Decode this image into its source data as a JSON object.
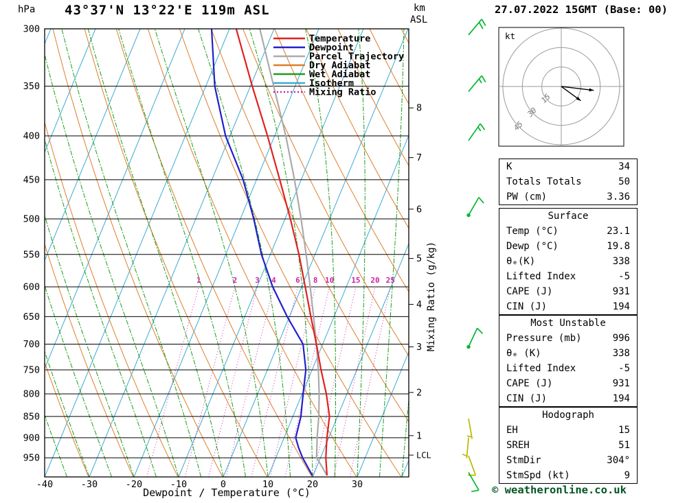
{
  "header": {
    "pressure_unit": "hPa",
    "title": "43°37'N 13°22'E 119m ASL",
    "km_label": "km",
    "asl_label": "ASL",
    "datetime": "27.07.2022 15GMT (Base: 00)"
  },
  "legend": {
    "items": [
      {
        "label": "Temperature",
        "color": "#e02020",
        "dash": ""
      },
      {
        "label": "Dewpoint",
        "color": "#2020cc",
        "dash": ""
      },
      {
        "label": "Parcel Trajectory",
        "color": "#aaaaaa",
        "dash": ""
      },
      {
        "label": "Dry Adiabat",
        "color": "#dd7e2a",
        "dash": ""
      },
      {
        "label": "Wet Adiabat",
        "color": "#1a9e1a",
        "dash": ""
      },
      {
        "label": "Isotherm",
        "color": "#3aabd0",
        "dash": ""
      },
      {
        "label": "Mixing Ratio",
        "color": "#cc22aa",
        "dash": "2,3"
      }
    ]
  },
  "axes": {
    "pressure_ticks": [
      300,
      350,
      400,
      450,
      500,
      550,
      600,
      650,
      700,
      750,
      800,
      850,
      900,
      950
    ],
    "temp_ticks": [
      -40,
      -30,
      -20,
      -10,
      0,
      10,
      20,
      30
    ],
    "xlabel": "Dewpoint / Temperature (°C)",
    "right_axis_label": "Mixing Ratio (g/kg)",
    "mixing_ratio_values": [
      1,
      2,
      3,
      4,
      6,
      8,
      10,
      15,
      20,
      25
    ],
    "km_ticks": [
      {
        "label": "8",
        "p": 371
      },
      {
        "label": "7",
        "p": 424
      },
      {
        "label": "6",
        "p": 487
      },
      {
        "label": "5",
        "p": 556
      },
      {
        "label": "4",
        "p": 629
      },
      {
        "label": "3",
        "p": 705
      },
      {
        "label": "2",
        "p": 797
      },
      {
        "label": "1",
        "p": 895
      },
      {
        "label": "LCL",
        "p": 943
      }
    ]
  },
  "chart_data": {
    "type": "skewt-logp-sounding",
    "pressure_range_hpa": [
      300,
      1000
    ],
    "surface_temp_c": 23.1,
    "surface_dewp_c": 19.8,
    "temperature_profile": [
      {
        "p": 996,
        "t": 23.1
      },
      {
        "p": 950,
        "t": 21.2
      },
      {
        "p": 925,
        "t": 20.4
      },
      {
        "p": 900,
        "t": 19.6
      },
      {
        "p": 850,
        "t": 18.2
      },
      {
        "p": 800,
        "t": 15.4
      },
      {
        "p": 750,
        "t": 12.0
      },
      {
        "p": 700,
        "t": 8.6
      },
      {
        "p": 650,
        "t": 4.8
      },
      {
        "p": 600,
        "t": 0.8
      },
      {
        "p": 550,
        "t": -3.6
      },
      {
        "p": 500,
        "t": -8.8
      },
      {
        "p": 450,
        "t": -14.8
      },
      {
        "p": 400,
        "t": -21.6
      },
      {
        "p": 350,
        "t": -29.6
      },
      {
        "p": 300,
        "t": -38.5
      }
    ],
    "dewpoint_profile": [
      {
        "p": 996,
        "t": 19.8
      },
      {
        "p": 950,
        "t": 16.0
      },
      {
        "p": 925,
        "t": 14.2
      },
      {
        "p": 900,
        "t": 12.6
      },
      {
        "p": 850,
        "t": 11.8
      },
      {
        "p": 800,
        "t": 10.2
      },
      {
        "p": 750,
        "t": 8.6
      },
      {
        "p": 700,
        "t": 5.6
      },
      {
        "p": 650,
        "t": -0.5
      },
      {
        "p": 600,
        "t": -6.5
      },
      {
        "p": 550,
        "t": -12.0
      },
      {
        "p": 500,
        "t": -17.0
      },
      {
        "p": 450,
        "t": -23.0
      },
      {
        "p": 400,
        "t": -31.0
      },
      {
        "p": 350,
        "t": -38.0
      },
      {
        "p": 300,
        "t": -44.0
      }
    ],
    "parcel_profile": [
      {
        "p": 996,
        "t": 23.1
      },
      {
        "p": 949,
        "t": 19.1
      },
      {
        "p": 900,
        "t": 17.4
      },
      {
        "p": 850,
        "t": 15.8
      },
      {
        "p": 800,
        "t": 13.8
      },
      {
        "p": 750,
        "t": 11.4
      },
      {
        "p": 700,
        "t": 8.6
      },
      {
        "p": 650,
        "t": 5.4
      },
      {
        "p": 600,
        "t": 1.9
      },
      {
        "p": 550,
        "t": -2.0
      },
      {
        "p": 500,
        "t": -6.4
      },
      {
        "p": 450,
        "t": -11.5
      },
      {
        "p": 400,
        "t": -17.5
      },
      {
        "p": 350,
        "t": -24.8
      },
      {
        "p": 300,
        "t": -33.2
      }
    ],
    "wind_barbs": [
      {
        "p": 305,
        "spd": 20,
        "dir": 40,
        "color": "#00b830"
      },
      {
        "p": 355,
        "spd": 15,
        "dir": 40,
        "color": "#00b830"
      },
      {
        "p": 405,
        "spd": 15,
        "dir": 35,
        "color": "#00b830"
      },
      {
        "p": 495,
        "spd": 10,
        "dir": 30,
        "dot": true,
        "color": "#00b830"
      },
      {
        "p": 705,
        "spd": 10,
        "dir": 25,
        "dot": true,
        "color": "#00b830"
      },
      {
        "p": 855,
        "spd": 5,
        "dir": 170,
        "color": "#b8b800"
      },
      {
        "p": 900,
        "spd": 5,
        "dir": 185,
        "color": "#b8b800"
      },
      {
        "p": 945,
        "spd": 10,
        "dir": 160,
        "color": "#b8b800"
      },
      {
        "p": 988,
        "spd": 10,
        "dir": 150,
        "color": "#00b830"
      }
    ],
    "hodograph": {
      "unit": "kt",
      "rings": [
        15,
        30,
        45
      ],
      "vectors": [
        {
          "u": 25,
          "v": -3
        },
        {
          "u": 15,
          "v": -11
        }
      ]
    },
    "colors": {
      "temperature": "#e02020",
      "dewpoint": "#2020cc",
      "parcel": "#aaaaaa",
      "dry_adiabat": "#dd7e2a",
      "wet_adiabat": "#1a9e1a",
      "isotherm": "#3aabd0",
      "mixing_ratio": "#cc22aa"
    }
  },
  "tables": {
    "indices": {
      "rows": [
        [
          "K",
          "34"
        ],
        [
          "Totals Totals",
          "50"
        ],
        [
          "PW (cm)",
          "3.36"
        ]
      ]
    },
    "surface": {
      "title": "Surface",
      "rows": [
        [
          "Temp (°C)",
          "23.1"
        ],
        [
          "Dewp (°C)",
          "19.8"
        ],
        [
          "θₑ(K)",
          "338"
        ],
        [
          "Lifted Index",
          "-5"
        ],
        [
          "CAPE (J)",
          "931"
        ],
        [
          "CIN (J)",
          "194"
        ]
      ]
    },
    "most_unstable": {
      "title": "Most Unstable",
      "rows": [
        [
          "Pressure (mb)",
          "996"
        ],
        [
          "θₑ (K)",
          "338"
        ],
        [
          "Lifted Index",
          "-5"
        ],
        [
          "CAPE (J)",
          "931"
        ],
        [
          "CIN (J)",
          "194"
        ]
      ]
    },
    "hodograph": {
      "title": "Hodograph",
      "rows": [
        [
          "EH",
          "15"
        ],
        [
          "SREH",
          "51"
        ],
        [
          "StmDir",
          "304°"
        ],
        [
          "StmSpd (kt)",
          "9"
        ]
      ]
    }
  },
  "footer": {
    "copyright": "© weatheronline.co.uk"
  }
}
